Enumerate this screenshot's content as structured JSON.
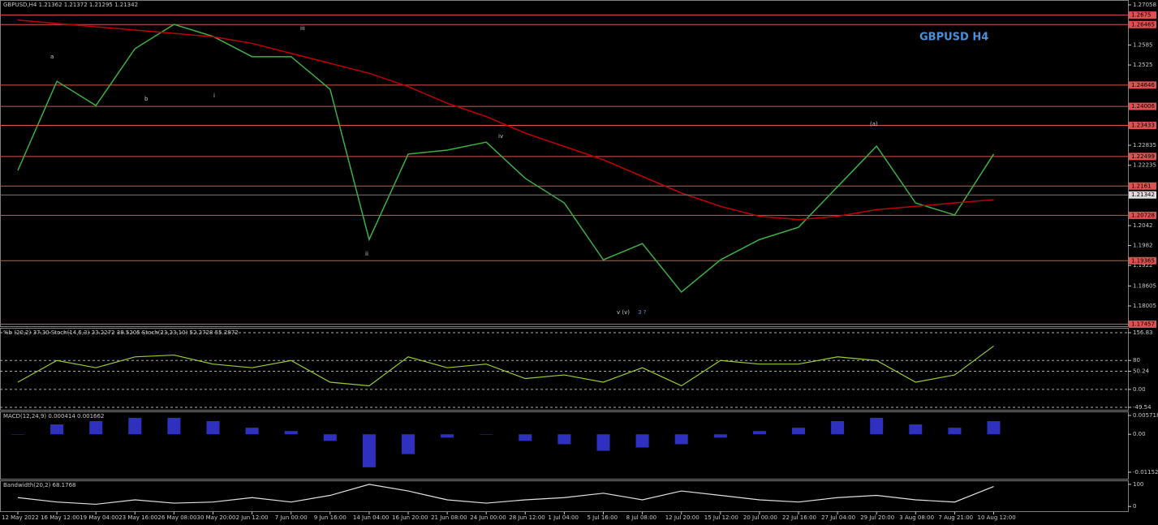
{
  "chart_data": [
    {
      "type": "line",
      "title": "GBPUSD,H4  1.21362 1.21372 1.21295 1.21342",
      "label": "GBPUSD H4",
      "categories": [
        "12 May 2022",
        "16 May 12:00",
        "19 May 04:00",
        "23 May 16:00",
        "26 May 08:00",
        "30 May 20:00",
        "2 Jun 12:00",
        "7 Jun 00:00",
        "9 Jun 16:00",
        "14 Jun 04:00",
        "16 Jun 20:00",
        "21 Jun 08:00",
        "24 Jun 00:00",
        "28 Jun 12:00",
        "1 Jul 04:00",
        "5 Jul 16:00",
        "8 Jul 08:00",
        "12 Jul 20:00",
        "15 Jul 12:00",
        "20 Jul 00:00",
        "22 Jul 16:00",
        "27 Jul 04:00",
        "29 Jul 20:00",
        "3 Aug 08:00",
        "7 Aug 21:00",
        "10 Aug 12:00"
      ],
      "series": [
        {
          "color": "#3cb043",
          "values": [
            1.2208,
            1.2476,
            1.2403,
            1.2574,
            1.2647,
            1.2611,
            1.255,
            1.255,
            1.2452,
            1.2,
            1.2257,
            1.2269,
            1.2293,
            1.2184,
            1.211,
            1.1939,
            1.1988,
            1.1842,
            1.1939,
            1.2,
            1.2037,
            1.2159,
            1.2281,
            1.211,
            1.2074,
            1.2257
          ]
        },
        {
          "color": "#c00000",
          "values": [
            1.266,
            1.265,
            1.264,
            1.263,
            1.262,
            1.261,
            1.259,
            1.256,
            1.253,
            1.25,
            1.246,
            1.241,
            1.237,
            1.232,
            1.228,
            1.224,
            1.219,
            1.214,
            1.21,
            1.207,
            1.206,
            1.207,
            1.209,
            1.21,
            1.211,
            1.212
          ]
        }
      ],
      "ylim": [
        1.17395,
        1.27204
      ],
      "yticks": [
        1.27058,
        1.2585,
        1.2525,
        1.22835,
        1.22235,
        1.2042,
        1.1982,
        1.1922,
        1.18605,
        1.18005
      ],
      "levels": [
        1.2675,
        1.26465,
        1.24646,
        1.24006,
        1.23433,
        1.22499,
        1.2161,
        1.20728,
        1.19365,
        1.17457
      ],
      "level_color": "#e05050",
      "current": 1.21342,
      "annotations": [
        "a",
        "b",
        "i",
        "ii",
        "iii",
        "iv",
        "v  (v)",
        "3 ?",
        "(a)"
      ]
    },
    {
      "type": "line",
      "title": "%b (20,2) 37.30  Stoch(14,5,3) 23.2272 38.5205  Stoch(23,23,10) 52.2728 55.2872",
      "color": "#9acd32",
      "values": [
        20,
        80,
        60,
        90,
        95,
        70,
        60,
        80,
        20,
        10,
        90,
        60,
        70,
        30,
        40,
        20,
        60,
        10,
        80,
        70,
        70,
        90,
        80,
        20,
        40,
        120
      ],
      "ylim": [
        -56.3,
        170.3
      ],
      "yticks": [
        156.83,
        80,
        50.24,
        {
          "value": 0,
          "label": "0.00"
        },
        -49.54
      ]
    },
    {
      "type": "bar",
      "title": "MACD(12,24,9) 0.000414 0.001662",
      "color": "#3030c0",
      "values": [
        0,
        0.003,
        0.004,
        0.005,
        0.005,
        0.004,
        0.002,
        0.001,
        -0.002,
        -0.01,
        -0.006,
        -0.001,
        0,
        -0.002,
        -0.003,
        -0.005,
        -0.004,
        -0.003,
        -0.001,
        0.001,
        0.002,
        0.004,
        0.005,
        0.003,
        0.002,
        0.004
      ],
      "ylim": [
        -0.01349,
        0.00695
      ],
      "yticks": [
        0.005718,
        {
          "value": 0,
          "label": "0.00"
        },
        -0.011523
      ]
    },
    {
      "type": "line",
      "title": "Bandwidth(20,2) 68.1768",
      "color": "#e0e0e0",
      "values": [
        40,
        20,
        10,
        30,
        15,
        20,
        40,
        20,
        50,
        100,
        70,
        30,
        15,
        30,
        40,
        60,
        30,
        70,
        50,
        30,
        20,
        40,
        50,
        30,
        20,
        90
      ],
      "ylim": [
        -21.4,
        117.9
      ],
      "yticks": [
        100,
        0
      ]
    }
  ]
}
